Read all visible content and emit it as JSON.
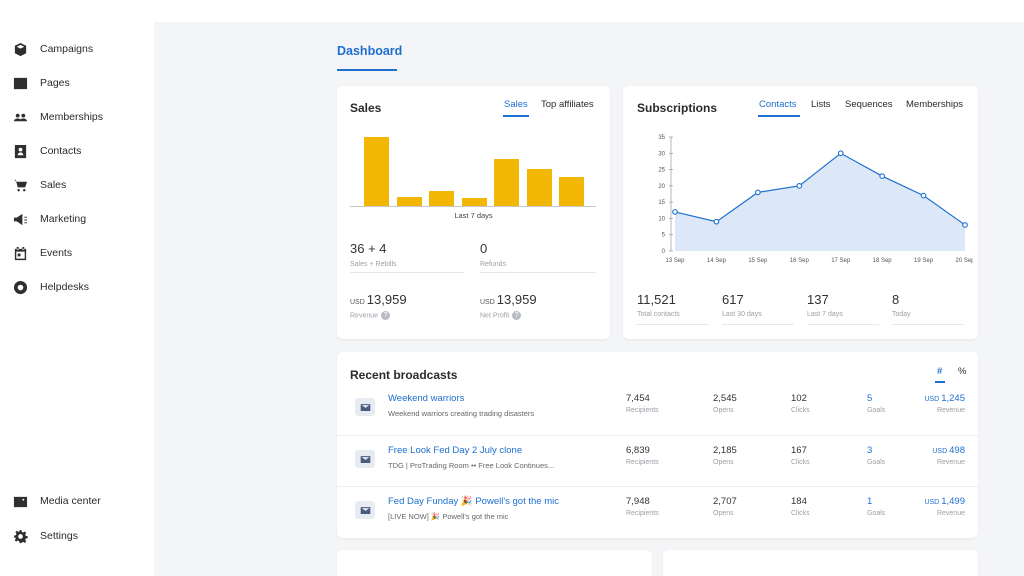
{
  "sidebar": {
    "items": [
      {
        "label": "Campaigns",
        "icon": "campaigns-icon"
      },
      {
        "label": "Pages",
        "icon": "pages-icon"
      },
      {
        "label": "Memberships",
        "icon": "memberships-icon"
      },
      {
        "label": "Contacts",
        "icon": "contacts-icon"
      },
      {
        "label": "Sales",
        "icon": "cart-icon"
      },
      {
        "label": "Marketing",
        "icon": "megaphone-icon"
      },
      {
        "label": "Events",
        "icon": "calendar-icon"
      },
      {
        "label": "Helpdesks",
        "icon": "lifebuoy-icon"
      }
    ],
    "bottom": [
      {
        "label": "Media center",
        "icon": "media-icon"
      },
      {
        "label": "Settings",
        "icon": "gear-icon"
      }
    ]
  },
  "page": {
    "title": "Dashboard"
  },
  "sales": {
    "title": "Sales",
    "tabs": [
      "Sales",
      "Top affiliates"
    ],
    "period": "Last 7 days",
    "bar_values": [
      100,
      13,
      22,
      11,
      68,
      53,
      42
    ],
    "sales_count": "36 + 4",
    "sales_label": "Sales + Rebills",
    "refunds": "0",
    "refunds_label": "Refunds",
    "currency": "USD",
    "revenue": "13,959",
    "revenue_label": "Revenue",
    "net_profit": "13,959",
    "net_profit_label": "Net Profit",
    "help": "?"
  },
  "subscriptions": {
    "title": "Subscriptions",
    "tabs": [
      "Contacts",
      "Lists",
      "Sequences",
      "Memberships"
    ],
    "stats": [
      {
        "value": "11,521",
        "label": "Total contacts"
      },
      {
        "value": "617",
        "label": "Last 30 days"
      },
      {
        "value": "137",
        "label": "Last 7 days"
      },
      {
        "value": "8",
        "label": "Today"
      }
    ]
  },
  "chart_data": {
    "type": "area",
    "x": [
      "13 Sep",
      "14 Sep",
      "15 Sep",
      "16 Sep",
      "17 Sep",
      "18 Sep",
      "19 Sep",
      "20 Sep"
    ],
    "values": [
      12,
      9,
      18,
      20,
      30,
      23,
      17,
      8
    ],
    "ylim": [
      0,
      35
    ],
    "yticks": [
      0,
      5,
      10,
      15,
      20,
      25,
      30,
      35
    ],
    "color": "#1e6fd0",
    "fill": "#dce8f7"
  },
  "broadcasts": {
    "title": "Recent broadcasts",
    "toggle": [
      "#",
      "%"
    ],
    "labels": {
      "recipients": "Recipients",
      "opens": "Opens",
      "clicks": "Clicks",
      "goals": "Goals",
      "revenue": "Revenue",
      "currency": "USD"
    },
    "rows": [
      {
        "title": "Weekend warriors",
        "subtitle": "Weekend warriors creating trading disasters",
        "recipients": "7,454",
        "opens": "2,545",
        "clicks": "102",
        "goals": "5",
        "revenue": "1,245"
      },
      {
        "title": "Free Look Fed Day 2 July clone",
        "subtitle": "TDG | ProTrading Room •• Free Look Continues...",
        "recipients": "6,839",
        "opens": "2,185",
        "clicks": "167",
        "goals": "3",
        "revenue": "498"
      },
      {
        "title": "Fed Day Funday 🎉 Powell's got the mic",
        "subtitle": "[LIVE NOW] 🎉 Powell's got the mic",
        "recipients": "7,948",
        "opens": "2,707",
        "clicks": "184",
        "goals": "1",
        "revenue": "1,499"
      }
    ]
  }
}
